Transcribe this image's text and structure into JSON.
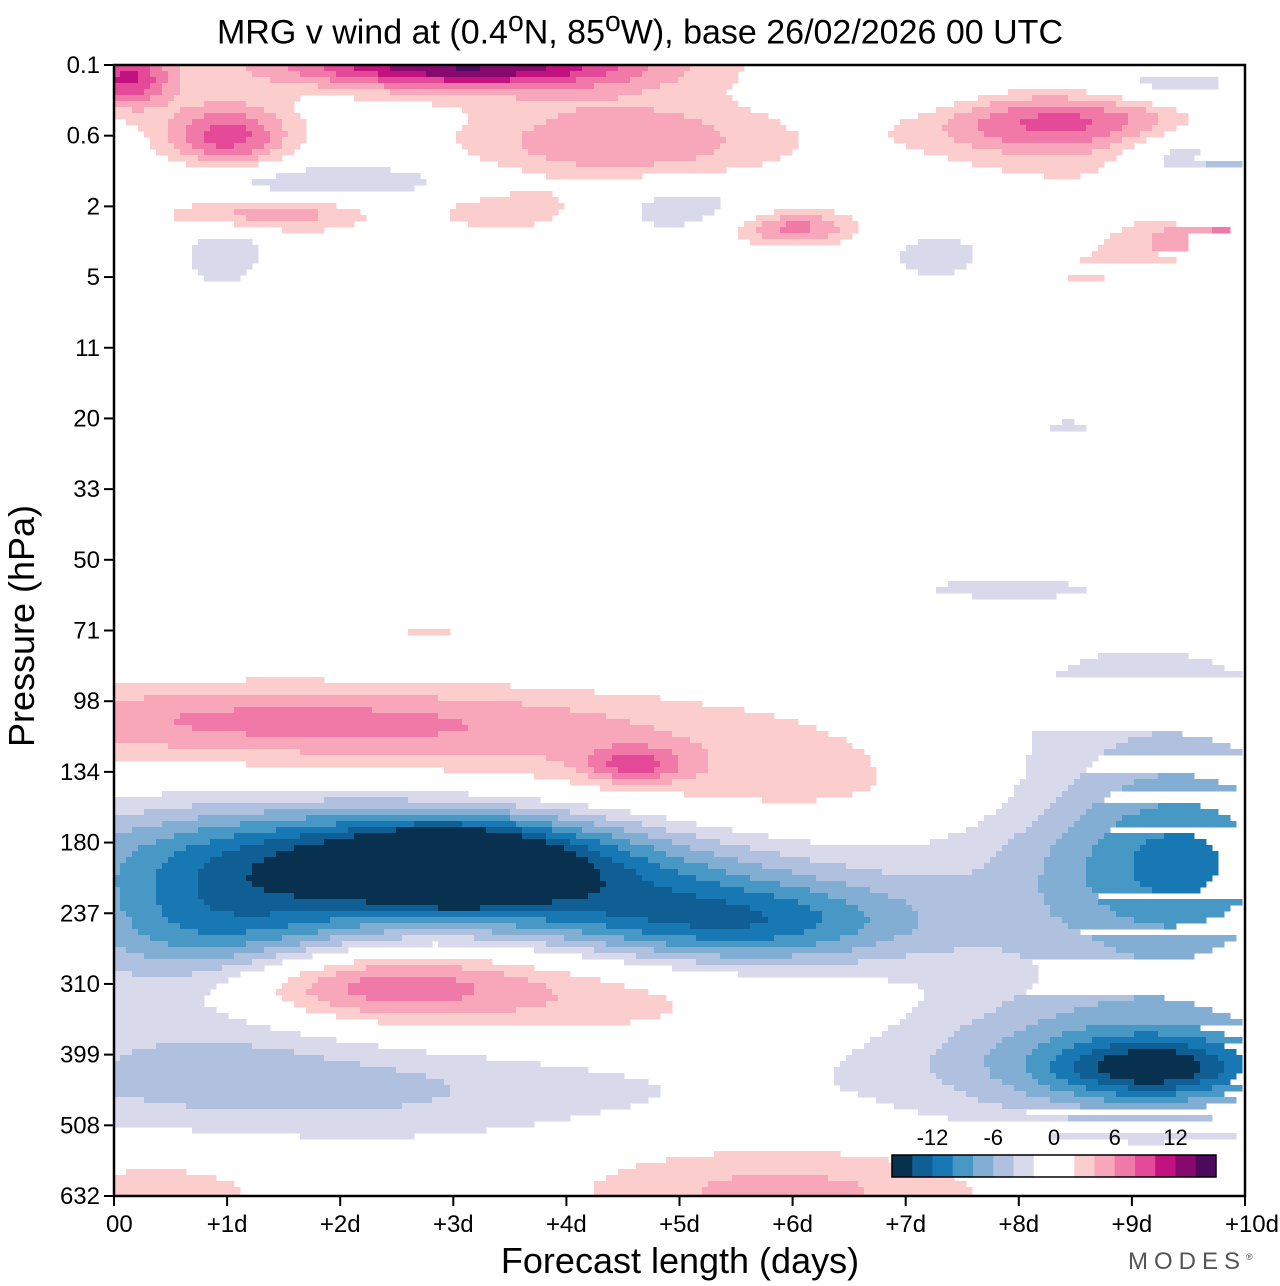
{
  "chart_data": {
    "type": "heatmap",
    "title_parts": {
      "prefix": "MRG v wind at (0.4",
      "lat_unit": "N, 85",
      "lon_unit": "W),  base 26/02/2026  00 UTC",
      "degree": "o"
    },
    "xlabel": "Forecast length (days)",
    "ylabel": "Pressure (hPa)",
    "x_ticks": [
      "00",
      "+1d",
      "+2d",
      "+3d",
      "+4d",
      "+5d",
      "+6d",
      "+7d",
      "+8d",
      "+9d",
      "+10d"
    ],
    "xlim_days": [
      0,
      10
    ],
    "y_ticks": [
      "0.1",
      "0.6",
      "2",
      "5",
      "11",
      "20",
      "33",
      "50",
      "71",
      "98",
      "134",
      "180",
      "237",
      "310",
      "399",
      "508",
      "632"
    ],
    "y_scale": "categorical model levels (top 0.1 hPa, bottom 632 hPa)",
    "colorbar": {
      "labels": [
        "-12",
        "-6",
        "0",
        "6",
        "12"
      ],
      "label_positions_level": [
        -12,
        -6,
        0,
        6,
        12
      ],
      "levels": [
        -16,
        -14,
        -12,
        -10,
        -8,
        -6,
        -4,
        -2,
        0,
        2,
        4,
        6,
        8,
        10,
        12,
        14,
        16
      ],
      "colors": [
        "#08304f",
        "#105f94",
        "#1878b4",
        "#4798c4",
        "#82aed4",
        "#b0c1df",
        "#d8d9ea",
        "#ffffff",
        "#ffffff",
        "#fbcdcd",
        "#f8a7bb",
        "#f179a7",
        "#e44a98",
        "#c2127f",
        "#86096e",
        "#4d0a5c"
      ],
      "location": "bottom-right"
    },
    "features": [
      {
        "x": 0.9,
        "y": 12.4,
        "rx": 1.0,
        "ry": 0.85,
        "v": -10
      },
      {
        "x": 2.2,
        "y": 11.1,
        "rx": 2.1,
        "ry": 0.55,
        "v": -8
      },
      {
        "x": 3.1,
        "y": 11.3,
        "rx": 1.1,
        "ry": 0.5,
        "v": -9
      },
      {
        "x": 3.0,
        "y": 11.35,
        "rx": 0.45,
        "ry": 0.3,
        "v": -13
      },
      {
        "x": 4.2,
        "y": 11.9,
        "rx": 1.9,
        "ry": 0.55,
        "v": -6
      },
      {
        "x": 5.6,
        "y": 12.2,
        "rx": 1.1,
        "ry": 0.45,
        "v": -8
      },
      {
        "x": 1.8,
        "y": 14.4,
        "rx": 2.6,
        "ry": 0.6,
        "v": -5
      },
      {
        "x": 9.1,
        "y": 11.0,
        "rx": 1.25,
        "ry": 2.0,
        "v": -5
      },
      {
        "x": 9.5,
        "y": 11.3,
        "rx": 0.8,
        "ry": 0.9,
        "v": -6
      },
      {
        "x": 9.0,
        "y": 14.1,
        "rx": 1.4,
        "ry": 0.65,
        "v": -7
      },
      {
        "x": 9.2,
        "y": 14.2,
        "rx": 0.6,
        "ry": 0.3,
        "v": -8
      },
      {
        "x": 1.4,
        "y": 9.2,
        "rx": 2.3,
        "ry": 0.35,
        "v": 5
      },
      {
        "x": 3.0,
        "y": 9.6,
        "rx": 2.9,
        "ry": 0.4,
        "v": 3
      },
      {
        "x": 5.6,
        "y": 10.3,
        "rx": 2.0,
        "ry": 0.45,
        "v": 3
      },
      {
        "x": 4.6,
        "y": 9.9,
        "rx": 0.3,
        "ry": 0.18,
        "v": 6
      },
      {
        "x": 2.3,
        "y": 13.0,
        "rx": 2.0,
        "ry": 0.55,
        "v": 4
      },
      {
        "x": 2.0,
        "y": 13.0,
        "rx": 0.9,
        "ry": 0.35,
        "v": 6
      },
      {
        "x": 4.0,
        "y": 13.4,
        "rx": 1.5,
        "ry": 0.65,
        "v": 2
      },
      {
        "x": 5.5,
        "y": 15.8,
        "rx": 1.3,
        "ry": 0.55,
        "v": 2
      },
      {
        "x": 6.2,
        "y": 16.0,
        "rx": 1.3,
        "ry": 0.45,
        "v": 3
      },
      {
        "x": 0.4,
        "y": 15.9,
        "rx": 0.9,
        "ry": 0.45,
        "v": 3
      },
      {
        "x": 1.0,
        "y": 1.0,
        "rx": 0.4,
        "ry": 0.35,
        "v": 9
      },
      {
        "x": 0.1,
        "y": 0.2,
        "rx": 0.3,
        "ry": 0.3,
        "v": 10
      },
      {
        "x": 3.1,
        "y": 0.0,
        "rx": 1.2,
        "ry": 0.25,
        "v": 14
      },
      {
        "x": 4.5,
        "y": 1.1,
        "rx": 1.0,
        "ry": 0.5,
        "v": 6
      },
      {
        "x": 8.4,
        "y": 0.8,
        "rx": 0.9,
        "ry": 0.35,
        "v": 9
      },
      {
        "x": 6.0,
        "y": 2.3,
        "rx": 0.4,
        "ry": 0.18,
        "v": 7
      },
      {
        "x": 9.8,
        "y": 2.5,
        "rx": 0.55,
        "ry": 0.3,
        "v": 7
      },
      {
        "x": 1.3,
        "y": 2.1,
        "rx": 0.6,
        "ry": 0.18,
        "v": 6
      },
      {
        "x": 3.5,
        "y": 2.0,
        "rx": 0.6,
        "ry": 0.3,
        "v": 3
      },
      {
        "x": 6.4,
        "y": 4.7,
        "rx": 0.8,
        "ry": 0.2,
        "v": 2
      },
      {
        "x": 9.4,
        "y": 1.5,
        "rx": 1.0,
        "ry": 0.3,
        "v": 3
      },
      {
        "x": 2.2,
        "y": 3.0,
        "rx": 0.8,
        "ry": 0.35,
        "v": 2
      },
      {
        "x": 8.5,
        "y": 3.0,
        "rx": 0.5,
        "ry": 0.4,
        "v": 2
      },
      {
        "x": 9.7,
        "y": 1.3,
        "rx": 0.6,
        "ry": 0.3,
        "v": -8
      },
      {
        "x": 9.8,
        "y": 0.3,
        "rx": 1.0,
        "ry": 0.25,
        "v": -5
      },
      {
        "x": 2.0,
        "y": 1.65,
        "rx": 1.5,
        "ry": 0.2,
        "v": -4
      },
      {
        "x": 5.0,
        "y": 2.0,
        "rx": 0.6,
        "ry": 0.3,
        "v": -4
      },
      {
        "x": 7.0,
        "y": 0.4,
        "rx": 0.6,
        "ry": 0.25,
        "v": -3
      },
      {
        "x": 1.0,
        "y": 2.7,
        "rx": 0.3,
        "ry": 0.4,
        "v": -4
      },
      {
        "x": 7.3,
        "y": 2.7,
        "rx": 0.4,
        "ry": 0.3,
        "v": -3
      },
      {
        "x": 8.4,
        "y": 5.1,
        "rx": 0.8,
        "ry": 0.3,
        "v": -2
      },
      {
        "x": 5.1,
        "y": 5.1,
        "rx": 0.6,
        "ry": 0.2,
        "v": -2
      },
      {
        "x": 1.4,
        "y": 5.8,
        "rx": 2.0,
        "ry": 0.1,
        "v": -2
      },
      {
        "x": 7.7,
        "y": 7.4,
        "rx": 0.8,
        "ry": 0.15,
        "v": -2
      },
      {
        "x": 1.5,
        "y": 4.8,
        "rx": 1.0,
        "ry": 0.15,
        "v": -2
      },
      {
        "x": 1.7,
        "y": 7.3,
        "rx": 2.0,
        "ry": 0.15,
        "v": 2
      },
      {
        "x": 2.8,
        "y": 8.0,
        "rx": 2.2,
        "ry": 0.22,
        "v": 2
      },
      {
        "x": 3.3,
        "y": 5.1,
        "rx": 1.2,
        "ry": 0.12,
        "v": 2
      }
    ]
  }
}
